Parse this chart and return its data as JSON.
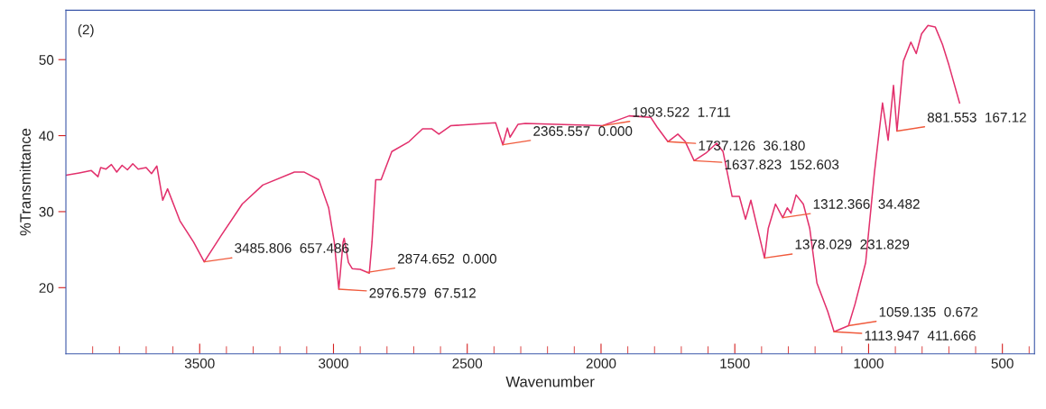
{
  "chart_data": {
    "type": "line",
    "xlabel": "Wavenumber",
    "ylabel": "%Transmittance",
    "xlim": [
      4000,
      380
    ],
    "ylim": [
      11.3,
      56.5
    ],
    "xticks": [
      {
        "value": 3900,
        "label": null
      },
      {
        "value": 3800,
        "label": null
      },
      {
        "value": 3700,
        "label": null
      },
      {
        "value": 3600,
        "label": null
      },
      3500,
      {
        "value": 3400,
        "label": null
      },
      {
        "value": 3300,
        "label": null
      },
      {
        "value": 3200,
        "label": null
      },
      {
        "value": 3100,
        "label": null
      },
      3000,
      {
        "value": 2900,
        "label": null
      },
      {
        "value": 2800,
        "label": null
      },
      {
        "value": 2700,
        "label": null
      },
      {
        "value": 2600,
        "label": null
      },
      2500,
      {
        "value": 2400,
        "label": null
      },
      {
        "value": 2300,
        "label": null
      },
      {
        "value": 2200,
        "label": null
      },
      {
        "value": 2100,
        "label": null
      },
      2000,
      {
        "value": 1900,
        "label": null
      },
      {
        "value": 1800,
        "label": null
      },
      {
        "value": 1700,
        "label": null
      },
      {
        "value": 1600,
        "label": null
      },
      1500,
      {
        "value": 1400,
        "label": null
      },
      {
        "value": 1300,
        "label": null
      },
      {
        "value": 1200,
        "label": null
      },
      {
        "value": 1100,
        "label": null
      },
      1000,
      {
        "value": 900,
        "label": null
      },
      {
        "value": 800,
        "label": null
      },
      {
        "value": 700,
        "label": null
      },
      {
        "value": 600,
        "label": null
      },
      500,
      {
        "value": 400,
        "label": null
      }
    ],
    "yticks": [
      20,
      30,
      40,
      50
    ],
    "grid": false,
    "marker": "none",
    "line_style": "solid",
    "series": [
      {
        "color": "#e2306c",
        "x": [
          4000,
          3950,
          3905,
          3880,
          3870,
          3850,
          3830,
          3810,
          3790,
          3770,
          3750,
          3730,
          3700,
          3680,
          3660,
          3638,
          3620,
          3574,
          3523,
          3483,
          3419,
          3341,
          3264,
          3146,
          3109,
          3055,
          3018,
          2997,
          2980,
          2964,
          2960,
          2944,
          2930,
          2900,
          2866,
          2856,
          2842,
          2822,
          2782,
          2718,
          2667,
          2633,
          2606,
          2562,
          2394,
          2367,
          2350,
          2340,
          2310,
          2283,
          1996,
          1895,
          1814,
          1790,
          1750,
          1713,
          1685,
          1652,
          1608,
          1568,
          1544,
          1510,
          1483,
          1460,
          1440,
          1389,
          1375,
          1348,
          1321,
          1304,
          1290,
          1271,
          1244,
          1220,
          1193,
          1153,
          1129,
          1075,
          1051,
          1011,
          978,
          948,
          927,
          907,
          894,
          870,
          842,
          822,
          802,
          778,
          751,
          724,
          700,
          660
        ],
        "values": [
          34.8,
          35.1,
          35.4,
          34.6,
          35.8,
          35.6,
          36.2,
          35.2,
          36.1,
          35.5,
          36.3,
          35.6,
          35.8,
          35.0,
          36.0,
          31.5,
          33.0,
          28.8,
          26.0,
          23.4,
          26.9,
          31.0,
          33.5,
          35.2,
          35.2,
          34.2,
          30.5,
          26.0,
          19.8,
          26.0,
          26.5,
          23.3,
          22.5,
          22.4,
          21.9,
          26.0,
          34.2,
          34.2,
          37.9,
          39.2,
          40.9,
          40.9,
          40.2,
          41.3,
          41.7,
          38.8,
          41.0,
          39.8,
          41.5,
          41.6,
          41.3,
          42.6,
          42.4,
          41.1,
          39.2,
          40.2,
          39.2,
          36.7,
          37.7,
          39.0,
          37.9,
          32.0,
          32.0,
          29.0,
          31.5,
          23.9,
          27.8,
          31.0,
          29.2,
          30.5,
          29.8,
          32.2,
          31.0,
          27.8,
          20.6,
          16.9,
          14.2,
          15.0,
          17.8,
          23.3,
          35.2,
          44.3,
          39.4,
          46.6,
          40.6,
          49.8,
          52.3,
          50.8,
          53.4,
          54.5,
          54.3,
          52.0,
          49.3,
          44.3
        ]
      }
    ],
    "annotations": [
      "(2)",
      {
        "text": "3485.806  657.486",
        "x": 3483,
        "y": 23.4
      },
      {
        "text": "2874.652  0.000",
        "x": 2874,
        "y": 22.0
      },
      {
        "text": "2976.579  67.512",
        "x": 2980,
        "y": 19.8
      },
      {
        "text": "2365.557  0.000",
        "x": 2367,
        "y": 38.8
      },
      {
        "text": "1993.522  1.711",
        "x": 1996,
        "y": 41.3
      },
      {
        "text": "1737.126  36.180",
        "x": 1750,
        "y": 39.2
      },
      {
        "text": "1637.823  152.603",
        "x": 1652,
        "y": 36.7
      },
      {
        "text": "1312.366  34.482",
        "x": 1321,
        "y": 29.2
      },
      {
        "text": "1378.029  231.829",
        "x": 1389,
        "y": 23.9
      },
      {
        "text": "1059.135  0.672",
        "x": 1075,
        "y": 15.0
      },
      {
        "text": "1113.947  411.666",
        "x": 1129,
        "y": 14.2
      },
      {
        "text": "881.553  167.12",
        "x": 894,
        "y": 40.6
      }
    ]
  }
}
